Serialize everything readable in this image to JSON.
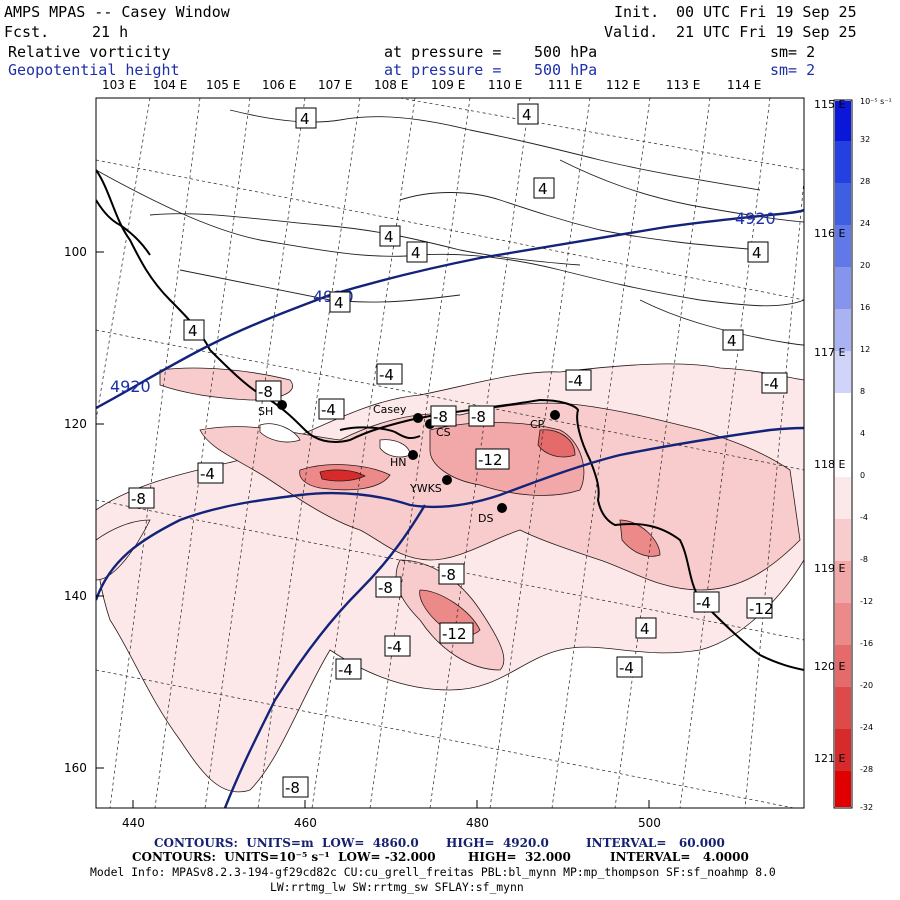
{
  "header": {
    "title": "AMPS MPAS -- Casey Window",
    "forecast_label": "Fcst.",
    "forecast_value": "21 h",
    "init_label": "Init.",
    "init_value": "00 UTC Fri 19 Sep 25",
    "valid_label": "Valid.",
    "valid_value": "21 UTC Fri 19 Sep 25",
    "field1_name": "Relative vorticity",
    "field1_pressure_label": "at pressure =",
    "field1_pressure_value": "500 hPa",
    "field1_smooth": "sm= 2",
    "field2_name": "Geopotential height",
    "field2_pressure_label": "at pressure =",
    "field2_pressure_value": "500 hPa",
    "field2_smooth": "sm= 2"
  },
  "axes": {
    "top_longitudes": [
      "103 E",
      "104 E",
      "105 E",
      "106 E",
      "107 E",
      "108 E",
      "109 E",
      "110 E",
      "111 E",
      "112 E",
      "113 E",
      "114 E"
    ],
    "right_longitudes": [
      "115 E",
      "116 E",
      "117 E",
      "118 E",
      "119 E",
      "120 E",
      "121 E"
    ],
    "x_ticks": [
      "440",
      "460",
      "480",
      "500"
    ],
    "y_ticks": [
      "100",
      "120",
      "140",
      "160"
    ]
  },
  "colorbar": {
    "unit": "10⁻⁵ s⁻¹",
    "labels": [
      "32",
      "28",
      "24",
      "20",
      "16",
      "12",
      "8",
      "4",
      "0",
      "-4",
      "-8",
      "-12",
      "-16",
      "-20",
      "-24",
      "-28",
      "-32"
    ],
    "colors": [
      "#0a16d8",
      "#2440e0",
      "#3f5fe3",
      "#6078e8",
      "#8595ee",
      "#a9b3f3",
      "#cfd4f8",
      "#ffffff",
      "#ffffff",
      "#fce8e8",
      "#f8cccc",
      "#f2a8a8",
      "#ec8a8a",
      "#e56a6a",
      "#de4a4a",
      "#d72a2a",
      "#e00000"
    ]
  },
  "stations": [
    {
      "id": "SH",
      "name": "SH"
    },
    {
      "id": "casey",
      "name": "Casey"
    },
    {
      "id": "cs",
      "name": "CS"
    },
    {
      "id": "cp",
      "name": "CP"
    },
    {
      "id": "hn",
      "name": "HN"
    },
    {
      "id": "ywks",
      "name": "YWKS"
    },
    {
      "id": "ds",
      "name": "DS"
    }
  ],
  "height_labels": [
    "4920",
    "4920",
    "4920"
  ],
  "vorticity_labels": [
    "4",
    "4",
    "4",
    "4",
    "4",
    "4",
    "4",
    "4",
    "4",
    "-4",
    "-4",
    "-4",
    "-4",
    "-4",
    "-4",
    "-4",
    "-4",
    "-4",
    "-8",
    "-8",
    "-8",
    "-8",
    "-8",
    "-8",
    "-8",
    "-12",
    "-12"
  ],
  "footer": {
    "line1_a": "CONTOURS:  UNITS=m  LOW=  4860.0",
    "line1_b": "HIGH=  4920.0",
    "line1_c": "INTERVAL=   60.000",
    "line2_a": "CONTOURS:  UNITS=10⁻⁵ s⁻¹  LOW= -32.000",
    "line2_b": "HIGH=  32.000",
    "line2_c": "INTERVAL=   4.0000",
    "model_info": "Model Info: MPASv8.2.3-194-gf29cd82c CU:cu_grell_freitas PBL:bl_mynn MP:mp_thompson SF:sf_noahmp 8.0",
    "model_info2": "LW:rrtmg_lw SW:rrtmg_sw SFLAY:sf_mynn"
  }
}
